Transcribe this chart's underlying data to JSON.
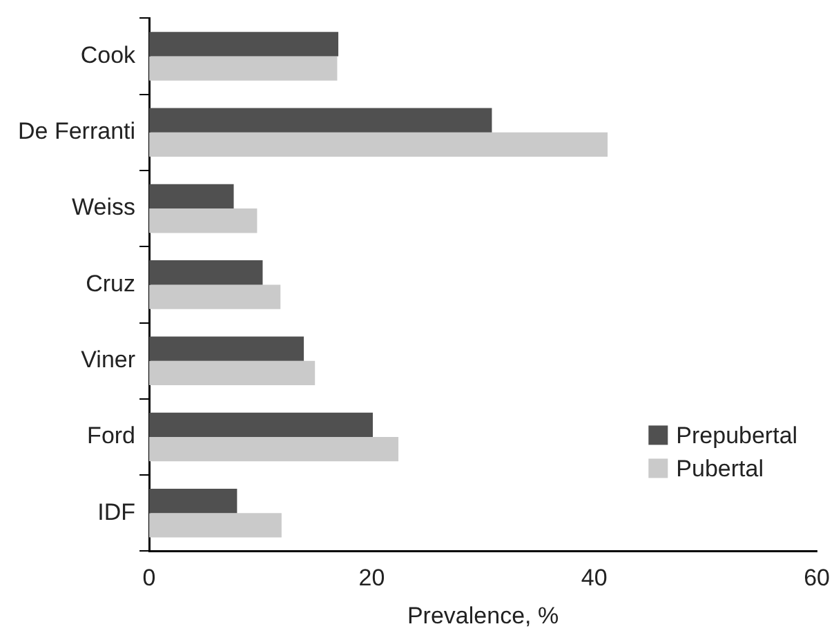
{
  "chart_data": {
    "type": "bar",
    "orientation": "horizontal",
    "xlabel": "Prevalence, %",
    "categories": [
      "Cook",
      "De Ferranti",
      "Weiss",
      "Cruz",
      "Viner",
      "Ford",
      "IDF"
    ],
    "series": [
      {
        "name": "Prepubertal",
        "color": "#505050",
        "values": [
          17.0,
          30.8,
          7.6,
          10.2,
          13.9,
          20.1,
          7.9
        ]
      },
      {
        "name": "Pubertal",
        "color": "#cacaca",
        "values": [
          16.9,
          41.2,
          9.7,
          11.8,
          14.9,
          22.4,
          11.9
        ]
      }
    ],
    "xlim": [
      0,
      60
    ],
    "xticks": [
      0,
      20,
      40,
      60
    ],
    "grid": false,
    "legend": "bottom right"
  }
}
